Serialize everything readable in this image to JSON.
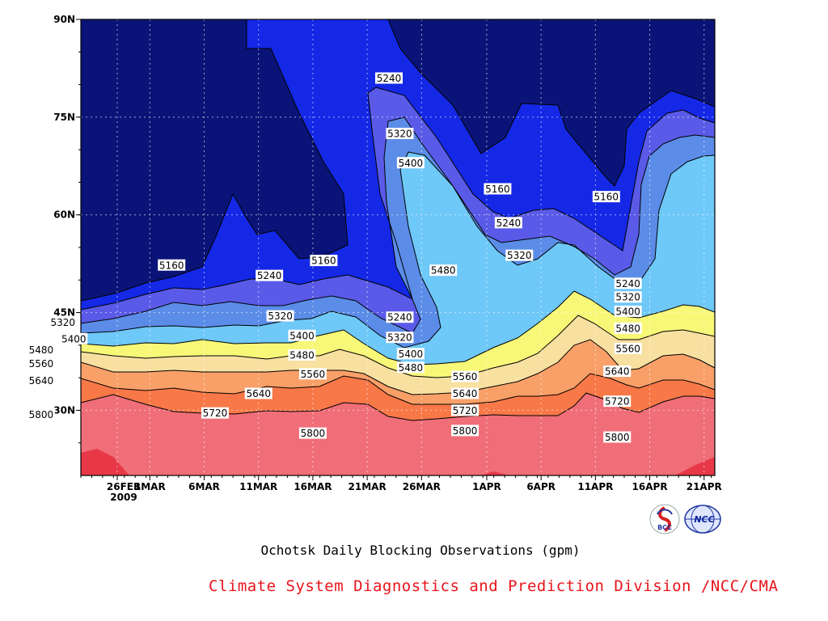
{
  "chart_data": {
    "type": "contour",
    "title": "Ochotsk Daily Blocking Observations (gpm)",
    "credit": "Climate System Diagnostics and Prediction Division /NCC/CMA",
    "x_ticks": [
      "26FEB",
      "1MAR",
      "6MAR",
      "11MAR",
      "16MAR",
      "21MAR",
      "26MAR",
      "1APR",
      "6APR",
      "11APR",
      "16APR",
      "21APR"
    ],
    "x_tick_year": "2009",
    "y_ticks": [
      "30N",
      "45N",
      "60N",
      "75N",
      "90N"
    ],
    "y_tick_values": [
      30,
      45,
      60,
      75,
      90
    ],
    "ylim": [
      20,
      90
    ],
    "contour_levels": [
      5160,
      5240,
      5320,
      5400,
      5480,
      5560,
      5640,
      5720,
      5800
    ],
    "fill_colors": {
      "lt5160": "#0a1478",
      "5160": "#1428e6",
      "5240": "#5a5ae8",
      "5320": "#5b8ce8",
      "5400": "#6ec8f8",
      "5480": "#f8f878",
      "5560": "#f8e0a0",
      "5640": "#f8a068",
      "5720": "#f87848",
      "5800": "#f06e78",
      "gt5880": "#e83848"
    },
    "contour_labels": [
      {
        "value": "5240",
        "date": "23MAR",
        "lat": 81
      },
      {
        "value": "5320",
        "date": "24MAR",
        "lat": 72.5
      },
      {
        "value": "5400",
        "date": "25MAR",
        "lat": 68
      },
      {
        "value": "5160",
        "date": "2APR",
        "lat": 64
      },
      {
        "value": "5240",
        "date": "3APR",
        "lat": 58.8
      },
      {
        "value": "5320",
        "date": "4APR",
        "lat": 53.8
      },
      {
        "value": "5480",
        "date": "28MAR",
        "lat": 51.5
      },
      {
        "value": "5160",
        "date": "12APR",
        "lat": 62.8
      },
      {
        "value": "5160",
        "date": "3MAR",
        "lat": 52.3
      },
      {
        "value": "5240",
        "date": "12MAR",
        "lat": 50.7
      },
      {
        "value": "5160",
        "date": "17MAR",
        "lat": 53
      },
      {
        "value": "5320",
        "date": "13MAR",
        "lat": 44.5
      },
      {
        "value": "5400",
        "date": "15MAR",
        "lat": 41.5
      },
      {
        "value": "5480",
        "date": "15MAR",
        "lat": 38.5
      },
      {
        "value": "5560",
        "date": "16MAR",
        "lat": 35.6
      },
      {
        "value": "5640",
        "date": "11MAR",
        "lat": 32.6
      },
      {
        "value": "5720",
        "date": "7MAR",
        "lat": 29.6
      },
      {
        "value": "5800",
        "date": "16MAR",
        "lat": 26.5
      },
      {
        "value": "5320",
        "date": "21FEB",
        "lat": 43.5
      },
      {
        "value": "5400",
        "date": "22FEB",
        "lat": 41
      },
      {
        "value": "5480",
        "date": "19FEB",
        "lat": 39.3
      },
      {
        "value": "5560",
        "date": "19FEB",
        "lat": 37.2
      },
      {
        "value": "5640",
        "date": "19FEB",
        "lat": 34.6
      },
      {
        "value": "5800",
        "date": "19FEB",
        "lat": 29.4
      },
      {
        "value": "5240",
        "date": "24MAR",
        "lat": 44.3
      },
      {
        "value": "5320",
        "date": "24MAR",
        "lat": 41.2
      },
      {
        "value": "5400",
        "date": "25MAR",
        "lat": 38.7
      },
      {
        "value": "5480",
        "date": "25MAR",
        "lat": 36.6
      },
      {
        "value": "5560",
        "date": "30MAR",
        "lat": 35.2
      },
      {
        "value": "5640",
        "date": "30MAR",
        "lat": 32.6
      },
      {
        "value": "5720",
        "date": "30MAR",
        "lat": 30
      },
      {
        "value": "5800",
        "date": "30MAR",
        "lat": 26.9
      },
      {
        "value": "5240",
        "date": "14APR",
        "lat": 49.5
      },
      {
        "value": "5320",
        "date": "14APR",
        "lat": 47.4
      },
      {
        "value": "5400",
        "date": "14APR",
        "lat": 45.2
      },
      {
        "value": "5480",
        "date": "14APR",
        "lat": 42.6
      },
      {
        "value": "5560",
        "date": "14APR",
        "lat": 39.5
      },
      {
        "value": "5640",
        "date": "13APR",
        "lat": 36
      },
      {
        "value": "5720",
        "date": "13APR",
        "lat": 31.4
      },
      {
        "value": "5800",
        "date": "13APR",
        "lat": 25.9
      }
    ]
  },
  "logos": [
    {
      "name": "BCC",
      "text": "BCC"
    },
    {
      "name": "NCC",
      "text": "NCC"
    }
  ]
}
